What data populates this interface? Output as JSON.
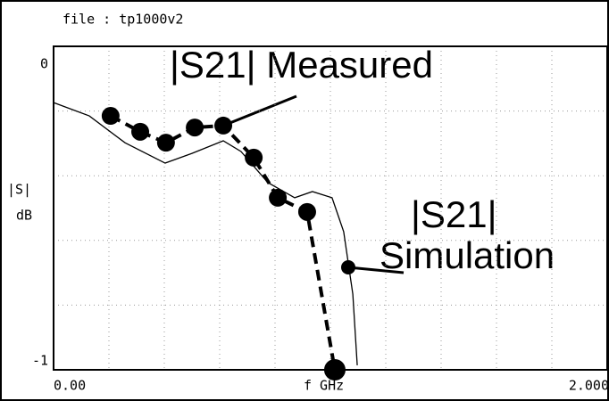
{
  "chart_data": {
    "type": "line",
    "title": "file : tp1000v2",
    "x_label": "f GHz",
    "y_label": [
      "|S|",
      "dB"
    ],
    "annotations": [
      "|S21| Measured",
      "|S21|",
      "Simulation"
    ],
    "xlim": [
      0,
      2
    ],
    "ylim": [
      -1,
      0
    ],
    "xticks": [
      {
        "value": 0,
        "label": "0.00"
      },
      {
        "value": 2,
        "label": "2.000"
      }
    ],
    "yticks": [
      0,
      -1
    ],
    "grid": true,
    "grid_divisions": {
      "x": 10,
      "y": 5
    },
    "series": [
      {
        "name": "|S21| Measured",
        "color": "#000000",
        "style": "dashed-markers",
        "x": [
          0.206,
          0.313,
          0.406,
          0.51,
          0.613,
          0.723,
          0.81,
          0.916,
          1.016
        ],
        "values": [
          -0.215,
          -0.264,
          -0.298,
          -0.251,
          -0.245,
          -0.344,
          -0.468,
          -0.512,
          -1.0
        ]
      },
      {
        "name": "|S21| Simulation",
        "color": "#000000",
        "style": "solid",
        "x": [
          0,
          0.129,
          0.258,
          0.403,
          0.5,
          0.613,
          0.677,
          0.774,
          0.871,
          0.935,
          1.006,
          1.048,
          1.081,
          1.097
        ],
        "values": [
          -0.174,
          -0.215,
          -0.298,
          -0.361,
          -0.331,
          -0.292,
          -0.325,
          -0.421,
          -0.468,
          -0.449,
          -0.468,
          -0.573,
          -0.766,
          -0.986
        ]
      }
    ]
  }
}
